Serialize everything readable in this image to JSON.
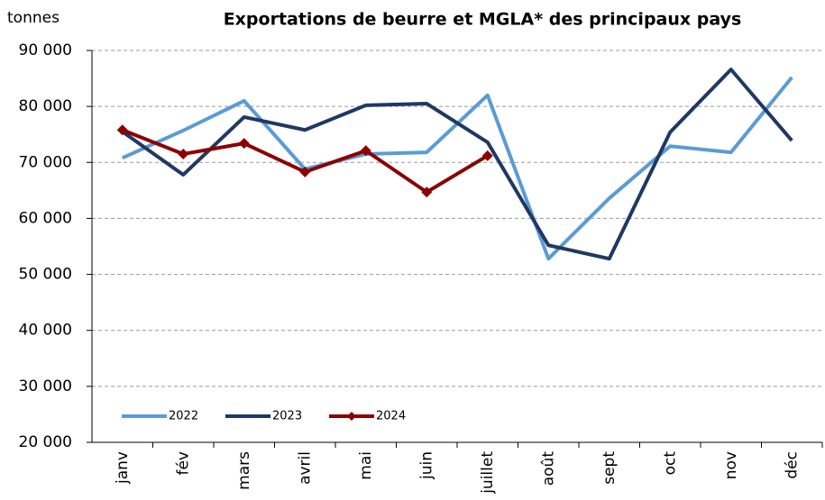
{
  "chart_data": {
    "type": "line",
    "title": "Exportations de beurre et MGLA* des principaux pays",
    "y_label": "tonnes",
    "categories": [
      "janv",
      "fév",
      "mars",
      "avril",
      "mai",
      "juin",
      "juillet",
      "août",
      "sept",
      "oct",
      "nov",
      "déc"
    ],
    "series": [
      {
        "name": "2022",
        "color": "#5b9bd5",
        "values": [
          70800,
          75700,
          81000,
          68800,
          71500,
          71800,
          82000,
          52800,
          63600,
          72900,
          71800,
          85200
        ]
      },
      {
        "name": "2023",
        "color": "#1f3864",
        "values": [
          75500,
          67800,
          78100,
          75800,
          80200,
          80500,
          73600,
          55200,
          52800,
          75400,
          86600,
          73900
        ]
      },
      {
        "name": "2024",
        "color": "#8b0000",
        "marker": "diamond",
        "values": [
          75800,
          71500,
          73400,
          68300,
          72100,
          64700,
          71200,
          null,
          null,
          null,
          null,
          null
        ]
      }
    ],
    "ylim": [
      20000,
      90000
    ],
    "yticks": [
      {
        "value": 20000,
        "label": "20 000"
      },
      {
        "value": 30000,
        "label": "30 000"
      },
      {
        "value": 40000,
        "label": "40 000"
      },
      {
        "value": 50000,
        "label": "50 000"
      },
      {
        "value": 60000,
        "label": "60 000"
      },
      {
        "value": 70000,
        "label": "70 000"
      },
      {
        "value": 80000,
        "label": "80 000"
      },
      {
        "value": 90000,
        "label": "90 000"
      }
    ],
    "grid": true,
    "legend": "lower left"
  }
}
